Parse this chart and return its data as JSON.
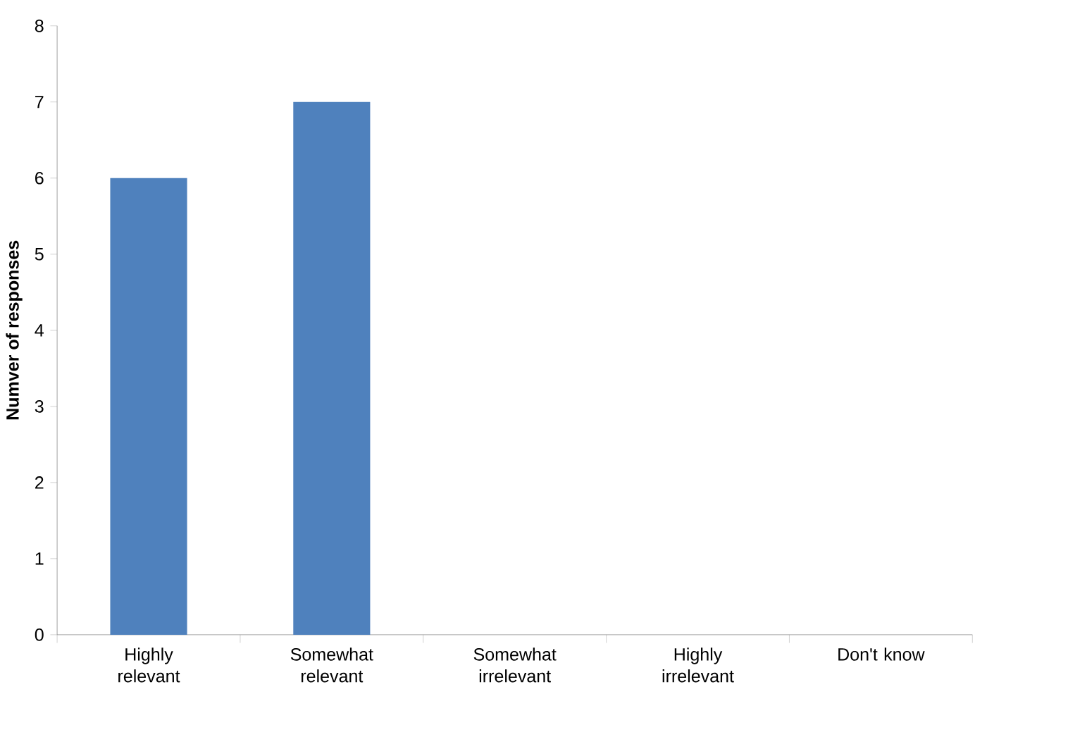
{
  "chart_data": {
    "type": "bar",
    "ylabel": "**Numver of responses**",
    "categories": [
      "Highly relevant",
      "Somewhat relevant",
      "Somewhat irrelevant",
      "Highly irrelevant",
      "Don't know"
    ],
    "values": [
      6,
      7,
      0,
      0,
      0
    ],
    "color": "#4f81bd",
    "ylim": [
      0,
      8
    ],
    "yticks": [
      0,
      1,
      2,
      3,
      4,
      5,
      6,
      7,
      8
    ]
  }
}
